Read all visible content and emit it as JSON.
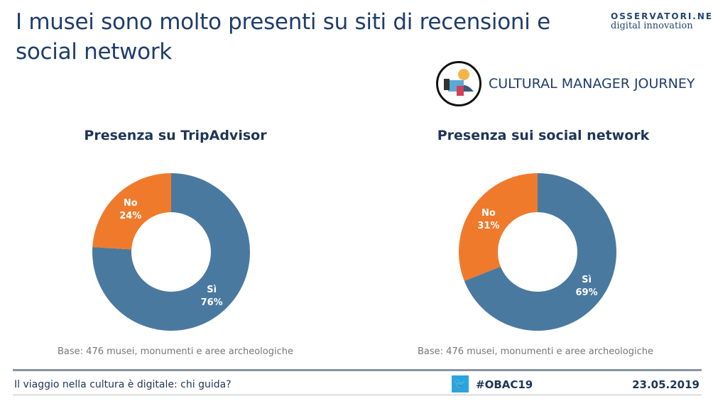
{
  "title": "I musei sono molto presenti su siti di recensioni e social network",
  "logo": {
    "line1": "OSSERVATORI.NET",
    "line2": "digital innovation"
  },
  "journey": "CULTURAL MANAGER JOURNEY",
  "colors": {
    "si": "#4a79a0",
    "no": "#f07a2c"
  },
  "chart_data": [
    {
      "type": "pie",
      "title": "Presenza su TripAdvisor",
      "labels": [
        "Sì",
        "No"
      ],
      "values": [
        76,
        24
      ],
      "value_labels": [
        "76%",
        "24%"
      ],
      "note": "Base: 476 musei, monumenti e aree archeologiche"
    },
    {
      "type": "pie",
      "title": "Presenza sui social network",
      "labels": [
        "Sì",
        "No"
      ],
      "values": [
        69,
        31
      ],
      "value_labels": [
        "69%",
        "31%"
      ],
      "note": "Base: 476 musei, monumenti e aree archeologiche"
    }
  ],
  "footer": {
    "text": "Il viaggio nella cultura è digitale: chi guida?",
    "hashtag": "#OBAC19",
    "date": "23.05.2019"
  }
}
